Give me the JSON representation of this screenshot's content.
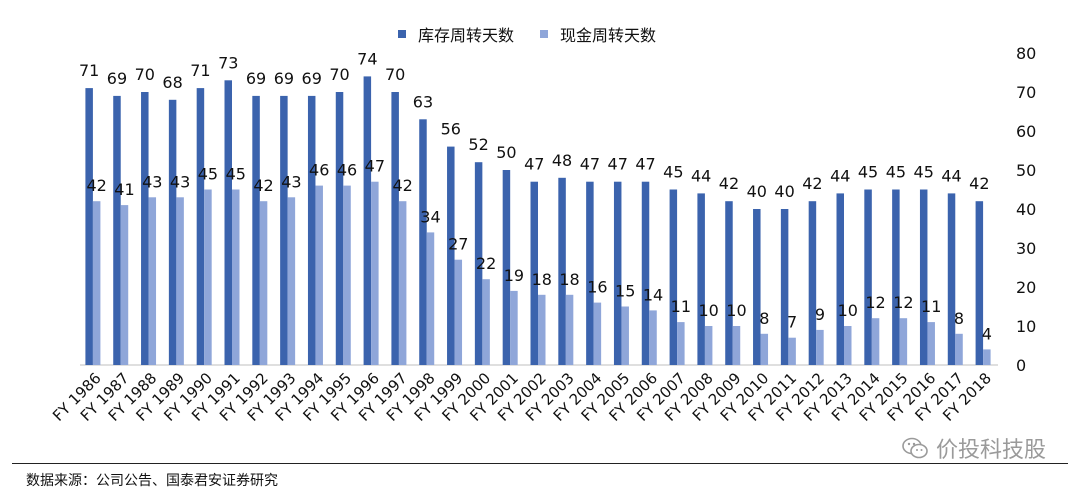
{
  "legend": {
    "series1": "库存周转天数",
    "series2": "现金周转天数",
    "color1": "#3b63ad",
    "color2": "#8fa6d9"
  },
  "footer": {
    "source": "数据来源：公司公告、国泰君安证券研究",
    "watermark": "价投科技股"
  },
  "chart_data": {
    "type": "bar",
    "categories": [
      "FY 1986",
      "FY 1987",
      "FY 1988",
      "FY 1989",
      "FY 1990",
      "FY 1991",
      "FY 1992",
      "FY 1993",
      "FY 1994",
      "FY 1995",
      "FY 1996",
      "FY 1997",
      "FY 1998",
      "FY 1999",
      "FY 2000",
      "FY 2001",
      "FY 2002",
      "FY 2003",
      "FY 2004",
      "FY 2005",
      "FY 2006",
      "FY 2007",
      "FY 2008",
      "FY 2009",
      "FY 2010",
      "FY 2011",
      "FY 2012",
      "FY 2013",
      "FY 2014",
      "FY 2015",
      "FY 2016",
      "FY 2017",
      "FY 2018"
    ],
    "series": [
      {
        "name": "库存周转天数",
        "color": "#3b63ad",
        "values": [
          71,
          69,
          70,
          68,
          71,
          73,
          69,
          69,
          69,
          70,
          74,
          70,
          63,
          56,
          52,
          50,
          47,
          48,
          47,
          47,
          47,
          45,
          44,
          42,
          40,
          40,
          42,
          44,
          45,
          45,
          45,
          44,
          42
        ]
      },
      {
        "name": "现金周转天数",
        "color": "#8fa6d9",
        "values": [
          42,
          41,
          43,
          43,
          45,
          45,
          42,
          43,
          46,
          46,
          47,
          42,
          34,
          27,
          22,
          19,
          18,
          18,
          16,
          15,
          14,
          11,
          10,
          10,
          8,
          7,
          9,
          10,
          12,
          12,
          11,
          8,
          4
        ]
      }
    ],
    "y_axis": {
      "position": "right",
      "min": 0,
      "max": 80,
      "ticks": [
        0,
        10,
        20,
        30,
        40,
        50,
        60,
        70,
        80
      ]
    },
    "grid": false,
    "legend_position": "top-center"
  }
}
